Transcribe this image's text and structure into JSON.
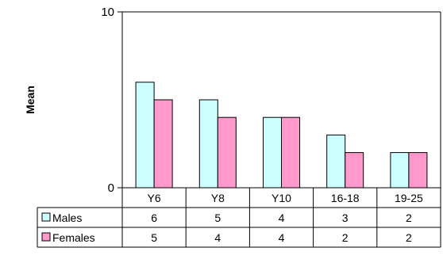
{
  "chart_data": {
    "type": "bar",
    "title": "",
    "xlabel": "",
    "ylabel": "Mean",
    "ylim": [
      0,
      10
    ],
    "y_ticks": [
      0,
      10
    ],
    "categories": [
      "Y6",
      "Y8",
      "Y10",
      "16-18",
      "19-25"
    ],
    "series": [
      {
        "name": "Males",
        "values": [
          6,
          5,
          4,
          3,
          2
        ],
        "color": "#ccffff"
      },
      {
        "name": "Females",
        "values": [
          5,
          4,
          4,
          2,
          2
        ],
        "color": "#ff99cc"
      }
    ],
    "grid": false,
    "legend": "data-table",
    "data_table": true
  }
}
